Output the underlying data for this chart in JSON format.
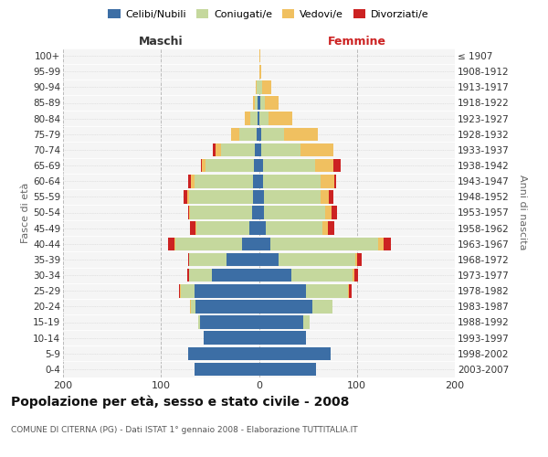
{
  "age_groups": [
    "0-4",
    "5-9",
    "10-14",
    "15-19",
    "20-24",
    "25-29",
    "30-34",
    "35-39",
    "40-44",
    "45-49",
    "50-54",
    "55-59",
    "60-64",
    "65-69",
    "70-74",
    "75-79",
    "80-84",
    "85-89",
    "90-94",
    "95-99",
    "100+"
  ],
  "birth_years": [
    "2003-2007",
    "1998-2002",
    "1993-1997",
    "1988-1992",
    "1983-1987",
    "1978-1982",
    "1973-1977",
    "1968-1972",
    "1963-1967",
    "1958-1962",
    "1953-1957",
    "1948-1952",
    "1943-1947",
    "1938-1942",
    "1933-1937",
    "1928-1932",
    "1923-1927",
    "1918-1922",
    "1913-1917",
    "1908-1912",
    "≤ 1907"
  ],
  "colors": {
    "celibe": "#3c6ea5",
    "coniugato": "#c5d89d",
    "vedovo": "#f0c060",
    "divorziato": "#cc2222"
  },
  "males": {
    "celibe": [
      66,
      72,
      56,
      60,
      65,
      66,
      48,
      33,
      17,
      10,
      7,
      6,
      6,
      5,
      4,
      2,
      1,
      1,
      0,
      0,
      0
    ],
    "coniugato": [
      0,
      0,
      0,
      2,
      4,
      14,
      23,
      38,
      68,
      54,
      63,
      65,
      60,
      50,
      35,
      18,
      8,
      3,
      2,
      0,
      0
    ],
    "vedovo": [
      0,
      0,
      0,
      0,
      1,
      1,
      0,
      0,
      1,
      1,
      1,
      2,
      3,
      3,
      5,
      8,
      5,
      2,
      1,
      0,
      0
    ],
    "divorziato": [
      0,
      0,
      0,
      0,
      0,
      1,
      2,
      1,
      7,
      5,
      1,
      4,
      3,
      1,
      3,
      0,
      0,
      0,
      0,
      0,
      0
    ]
  },
  "females": {
    "nubile": [
      58,
      73,
      48,
      45,
      55,
      48,
      33,
      20,
      12,
      7,
      5,
      5,
      4,
      4,
      2,
      2,
      0,
      1,
      0,
      0,
      0
    ],
    "coniugata": [
      0,
      0,
      0,
      7,
      20,
      43,
      63,
      78,
      110,
      58,
      63,
      58,
      59,
      53,
      40,
      24,
      10,
      5,
      3,
      0,
      0
    ],
    "vedova": [
      0,
      0,
      0,
      0,
      0,
      1,
      1,
      2,
      5,
      5,
      6,
      8,
      14,
      19,
      34,
      34,
      24,
      14,
      10,
      2,
      1
    ],
    "divorziata": [
      0,
      0,
      0,
      0,
      0,
      3,
      4,
      5,
      8,
      7,
      6,
      5,
      2,
      7,
      0,
      0,
      0,
      0,
      0,
      0,
      0
    ]
  },
  "title": "Popolazione per età, sesso e stato civile - 2008",
  "subtitle": "COMUNE DI CITERNA (PG) - Dati ISTAT 1° gennaio 2008 - Elaborazione TUTTITALIA.IT",
  "label_maschi": "Maschi",
  "label_femmine": "Femmine",
  "ylabel_left": "Fasce di età",
  "ylabel_right": "Anni di nascita",
  "legend_labels": [
    "Celibi/Nubili",
    "Coniugati/e",
    "Vedovi/e",
    "Divorziati/e"
  ],
  "xlim": 200,
  "bg_color": "#f5f5f5",
  "grid_color": "#cccccc",
  "bar_height": 0.85
}
